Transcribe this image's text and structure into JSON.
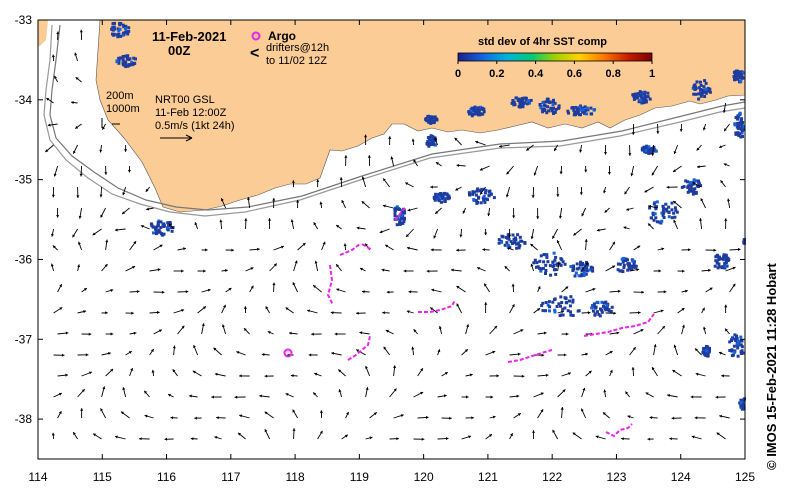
{
  "header": {
    "date": "11-Feb-2021",
    "time": "00Z"
  },
  "legend_drifters": {
    "argo_label": "Argo",
    "drifter_symbol": "<",
    "drifter_line1": "drifters@12h",
    "drifter_line2": "to 11/02 12Z"
  },
  "info": {
    "contour1": "200m",
    "contour2": "1000m",
    "product": "NRT00 GSL",
    "product_date": "11-Feb 12:00Z",
    "scale_label": "0.5m/s (1kt 24h)"
  },
  "colorbar": {
    "title": "std dev of 4hr SST comp",
    "ticks": [
      "0",
      "0.2",
      "0.4",
      "0.6",
      "0.8",
      "1"
    ],
    "colors": [
      "#1e1e8c",
      "#1464dc",
      "#00b4dc",
      "#00c878",
      "#a0d200",
      "#ffd200",
      "#ff7800",
      "#c81e00",
      "#7a0000"
    ]
  },
  "colors": {
    "land": "#fccc96",
    "sst_patch": "#1e3ca0",
    "drifter": "#ee22ee",
    "contour": "#999999"
  },
  "axes": {
    "x_ticks": [
      "114",
      "115",
      "116",
      "117",
      "118",
      "119",
      "120",
      "121",
      "122",
      "123",
      "124",
      "125"
    ],
    "y_ticks": [
      "-33",
      "-34",
      "-35",
      "-36",
      "-37",
      "-38"
    ],
    "lon_range": [
      114,
      125
    ],
    "lat_range": [
      -38.5,
      -33
    ]
  },
  "credit": "© IMOS 15-Feb-2021 11:28 Hobart"
}
